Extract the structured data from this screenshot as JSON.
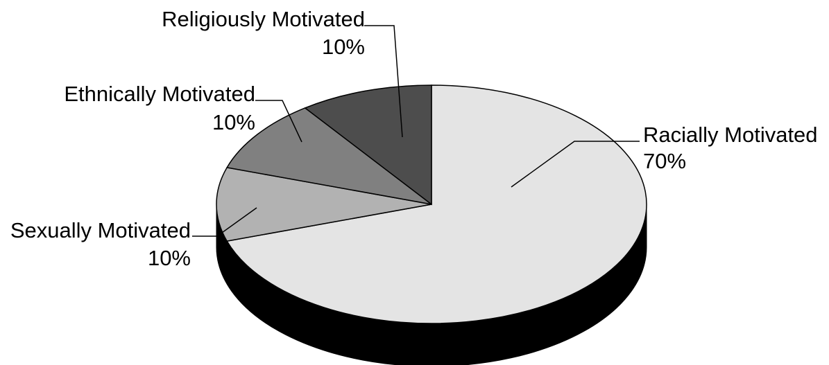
{
  "chart_data": {
    "type": "pie",
    "title": "",
    "three_d": true,
    "slices": [
      {
        "label": "Racially Motivated",
        "value_label": "70%",
        "value": 70,
        "color": "#e4e4e4"
      },
      {
        "label": "Sexually Motivated",
        "value_label": "10%",
        "value": 10,
        "color": "#b2b2b2"
      },
      {
        "label": "Ethnically Motivated",
        "value_label": "10%",
        "value": 10,
        "color": "#808080"
      },
      {
        "label": "Religiously Motivated",
        "value_label": "10%",
        "value": 10,
        "color": "#4d4d4d"
      }
    ],
    "side_color": "#000000",
    "legend": "none"
  }
}
